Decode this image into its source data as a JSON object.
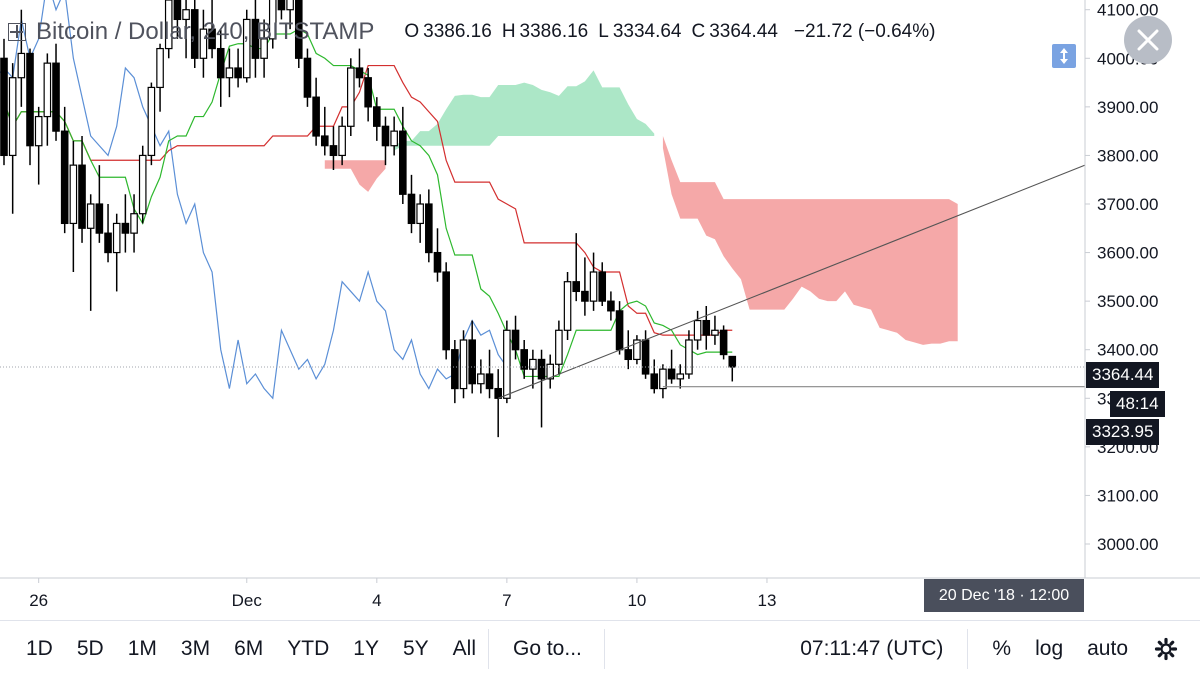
{
  "symbol": {
    "name": "Bitcoin / Dollar",
    "interval": "240",
    "exchange": "BITSTAMP",
    "title": "Bitcoin / Dollar, 240, BITSTAMP"
  },
  "ohlc": {
    "o_label": "O",
    "o": "3386.16",
    "h_label": "H",
    "h": "3386.16",
    "l_label": "L",
    "l": "3334.64",
    "c_label": "C",
    "c": "3364.44",
    "change": "−21.72 (−0.64%)"
  },
  "price_tags": {
    "last": "3364.44",
    "countdown": "48:14",
    "level": "3323.95"
  },
  "crosshair_date": "20 Dec '18 · 12:00",
  "toolbar": {
    "ranges": [
      "1D",
      "5D",
      "1M",
      "3M",
      "6M",
      "YTD",
      "1Y",
      "5Y",
      "All"
    ],
    "goto": "Go to...",
    "time": "07:11:47 (UTC)",
    "percent": "%",
    "log": "log",
    "auto": "auto"
  },
  "icons": {
    "close": "close-icon",
    "symbol": "symbol-icon",
    "settings": "gear-icon",
    "scale": "scale-arrows-icon"
  },
  "colors": {
    "up": "#ffffff",
    "down": "#000000",
    "tenkan": "#2eb82e",
    "kijun": "#d32f2f",
    "chikou": "#5b8fd6",
    "cloud_bull": "#a8e6c4",
    "cloud_bear": "#f4a3a3",
    "trendline": "#555555",
    "hline": "#888888"
  },
  "chart_data": {
    "type": "candlestick",
    "title": "Bitcoin / Dollar, 240, BITSTAMP",
    "indicators": [
      "Ichimoku Cloud"
    ],
    "ylim": [
      2930,
      4120
    ],
    "y_ticks": [
      "3000.00",
      "3100.00",
      "3200.00",
      "3300.00",
      "3400.00",
      "3500.00",
      "3600.00",
      "3700.00",
      "3800.00",
      "3900.00",
      "4000.00",
      "4100.00"
    ],
    "x_ticks": [
      "26",
      "Dec",
      "4",
      "7",
      "10",
      "13"
    ],
    "last_close": 3364.44,
    "horizontal_line": 3323.95,
    "trendline": {
      "from": [
        "Dec 7",
        3300
      ],
      "to": [
        "Dec 20",
        3780
      ]
    },
    "candles": [
      [
        4000,
        4040,
        3780,
        3800
      ],
      [
        3800,
        3990,
        3680,
        3960
      ],
      [
        3960,
        4100,
        3900,
        4010
      ],
      [
        4010,
        4020,
        3780,
        3820
      ],
      [
        3820,
        3900,
        3740,
        3880
      ],
      [
        3880,
        4010,
        3820,
        3990
      ],
      [
        3990,
        4030,
        3830,
        3850
      ],
      [
        3850,
        3900,
        3640,
        3660
      ],
      [
        3660,
        3830,
        3560,
        3780
      ],
      [
        3780,
        3840,
        3620,
        3650
      ],
      [
        3650,
        3720,
        3480,
        3700
      ],
      [
        3700,
        3780,
        3620,
        3640
      ],
      [
        3640,
        3700,
        3580,
        3600
      ],
      [
        3600,
        3680,
        3520,
        3660
      ],
      [
        3660,
        3720,
        3600,
        3640
      ],
      [
        3640,
        3720,
        3600,
        3680
      ],
      [
        3680,
        3820,
        3660,
        3800
      ],
      [
        3800,
        3950,
        3780,
        3940
      ],
      [
        3940,
        4030,
        3890,
        4020
      ],
      [
        4020,
        4140,
        4000,
        4120
      ],
      [
        4120,
        4160,
        4040,
        4080
      ],
      [
        4080,
        4120,
        4000,
        4100
      ],
      [
        4100,
        4140,
        3980,
        4000
      ],
      [
        4000,
        4100,
        3960,
        4060
      ],
      [
        4060,
        4130,
        4000,
        4020
      ],
      [
        4020,
        4060,
        3900,
        3960
      ],
      [
        3960,
        4020,
        3920,
        3980
      ],
      [
        3980,
        4020,
        3940,
        3960
      ],
      [
        3960,
        4100,
        3950,
        4080
      ],
      [
        4080,
        4120,
        3960,
        4000
      ],
      [
        4000,
        4080,
        3960,
        4040
      ],
      [
        4040,
        4200,
        4020,
        4160
      ],
      [
        4160,
        4200,
        4080,
        4100
      ],
      [
        4100,
        4180,
        4060,
        4140
      ],
      [
        4140,
        4160,
        3980,
        4000
      ],
      [
        4000,
        4020,
        3900,
        3920
      ],
      [
        3920,
        3960,
        3820,
        3840
      ],
      [
        3840,
        3900,
        3800,
        3820
      ],
      [
        3820,
        3860,
        3770,
        3800
      ],
      [
        3800,
        3880,
        3780,
        3860
      ],
      [
        3860,
        4000,
        3840,
        3980
      ],
      [
        3980,
        4020,
        3940,
        3960
      ],
      [
        3960,
        3980,
        3870,
        3900
      ],
      [
        3900,
        3920,
        3830,
        3860
      ],
      [
        3860,
        3880,
        3780,
        3820
      ],
      [
        3820,
        3880,
        3800,
        3850
      ],
      [
        3850,
        3900,
        3700,
        3720
      ],
      [
        3720,
        3760,
        3640,
        3660
      ],
      [
        3660,
        3720,
        3620,
        3700
      ],
      [
        3700,
        3730,
        3580,
        3600
      ],
      [
        3600,
        3650,
        3540,
        3560
      ],
      [
        3560,
        3580,
        3380,
        3400
      ],
      [
        3400,
        3420,
        3290,
        3320
      ],
      [
        3320,
        3440,
        3300,
        3420
      ],
      [
        3420,
        3460,
        3310,
        3330
      ],
      [
        3330,
        3380,
        3310,
        3350
      ],
      [
        3350,
        3400,
        3300,
        3320
      ],
      [
        3320,
        3360,
        3220,
        3300
      ],
      [
        3300,
        3460,
        3290,
        3440
      ],
      [
        3440,
        3470,
        3380,
        3400
      ],
      [
        3400,
        3420,
        3340,
        3360
      ],
      [
        3360,
        3400,
        3320,
        3380
      ],
      [
        3380,
        3400,
        3240,
        3340
      ],
      [
        3340,
        3390,
        3320,
        3370
      ],
      [
        3370,
        3460,
        3350,
        3440
      ],
      [
        3440,
        3560,
        3420,
        3540
      ],
      [
        3540,
        3640,
        3500,
        3520
      ],
      [
        3520,
        3590,
        3470,
        3500
      ],
      [
        3500,
        3600,
        3480,
        3560
      ],
      [
        3560,
        3580,
        3490,
        3500
      ],
      [
        3500,
        3520,
        3460,
        3480
      ],
      [
        3480,
        3500,
        3390,
        3400
      ],
      [
        3400,
        3440,
        3360,
        3380
      ],
      [
        3380,
        3430,
        3370,
        3420
      ],
      [
        3420,
        3440,
        3340,
        3350
      ],
      [
        3350,
        3380,
        3310,
        3320
      ],
      [
        3320,
        3370,
        3300,
        3360
      ],
      [
        3360,
        3400,
        3330,
        3340
      ],
      [
        3340,
        3370,
        3320,
        3350
      ],
      [
        3350,
        3440,
        3340,
        3420
      ],
      [
        3420,
        3480,
        3400,
        3460
      ],
      [
        3460,
        3490,
        3400,
        3430
      ],
      [
        3430,
        3470,
        3410,
        3440
      ],
      [
        3440,
        3450,
        3380,
        3390
      ],
      [
        3386.16,
        3386.16,
        3334.64,
        3364.44
      ]
    ]
  }
}
